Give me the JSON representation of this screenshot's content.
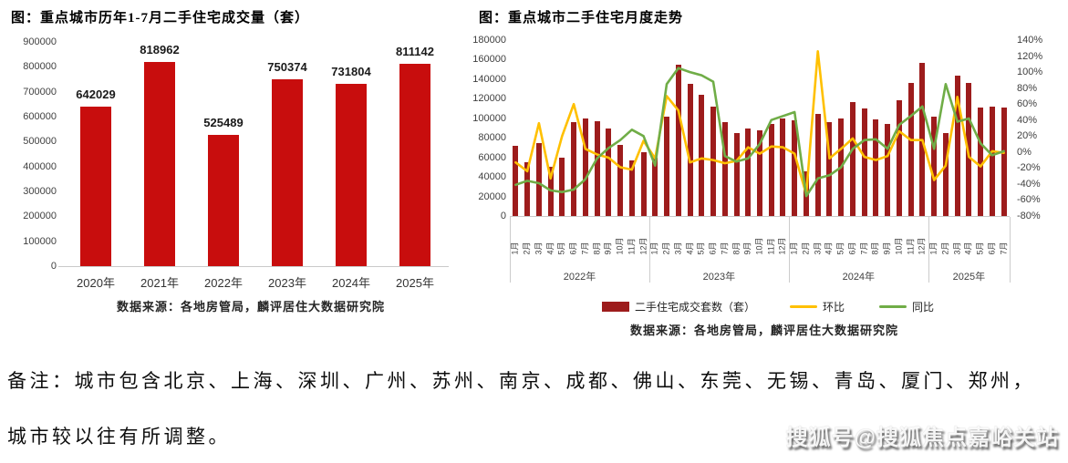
{
  "chart_data": [
    {
      "type": "bar",
      "title": "图：重点城市历年1-7月二手住宅成交量（套）",
      "source": "数据来源：各地房管局，麟评居住大数据研究院",
      "bar_color": "#c80d0d",
      "categories": [
        "2020年",
        "2021年",
        "2022年",
        "2023年",
        "2024年",
        "2025年"
      ],
      "values": [
        642029,
        818962,
        525489,
        750374,
        731804,
        811142
      ],
      "value_labels": [
        "642029",
        "818962",
        "525489",
        "750374",
        "731804",
        "811142"
      ],
      "ylim": [
        0,
        900000
      ],
      "y_ticks": [
        "900000",
        "800000",
        "700000",
        "600000",
        "500000",
        "400000",
        "300000",
        "200000",
        "100000",
        "0"
      ],
      "grid": false
    },
    {
      "type": "combo-bar-line",
      "title": "图：重点城市二手住宅月度走势",
      "source": "数据来源：各地房管局，麟评居住大数据研究院",
      "left_axis": {
        "min": 0,
        "max": 180000,
        "ticks": [
          "180000",
          "160000",
          "140000",
          "120000",
          "100000",
          "80000",
          "60000",
          "40000",
          "20000",
          "0"
        ]
      },
      "right_axis": {
        "min": -80,
        "max": 140,
        "ticks": [
          "140%",
          "120%",
          "100%",
          "80%",
          "60%",
          "40%",
          "20%",
          "0%",
          "-20%",
          "-40%",
          "-60%",
          "-80%"
        ]
      },
      "year_groups": [
        {
          "label": "2022年",
          "count": 12
        },
        {
          "label": "2023年",
          "count": 12
        },
        {
          "label": "2024年",
          "count": 12
        },
        {
          "label": "2025年",
          "count": 7
        }
      ],
      "months": [
        "1月",
        "2月",
        "3月",
        "4月",
        "5月",
        "6月",
        "7月",
        "8月",
        "9月",
        "10月",
        "11月",
        "12月",
        "1月",
        "2月",
        "3月",
        "4月",
        "5月",
        "6月",
        "7月",
        "8月",
        "9月",
        "10月",
        "11月",
        "12月",
        "1月",
        "2月",
        "3月",
        "4月",
        "5月",
        "6月",
        "7月",
        "8月",
        "9月",
        "10月",
        "11月",
        "12月",
        "1月",
        "2月",
        "3月",
        "4月",
        "5月",
        "6月",
        "7月"
      ],
      "series": [
        {
          "name": "二手住宅成交套数（套）",
          "type": "bar",
          "color": "#9d1c1c",
          "axis": "left",
          "values": [
            72000,
            55000,
            75000,
            50000,
            60000,
            96000,
            100000,
            97000,
            90000,
            73000,
            57000,
            65000,
            60000,
            102000,
            155000,
            135000,
            124000,
            112000,
            96000,
            85000,
            90000,
            88000,
            94000,
            100000,
            98000,
            46000,
            104000,
            96000,
            100000,
            117000,
            110000,
            99000,
            94000,
            118000,
            136000,
            157000,
            102000,
            85000,
            144000,
            136000,
            111000,
            112000,
            111000
          ]
        },
        {
          "name": "环比",
          "type": "line",
          "color": "#ffc000",
          "axis": "right",
          "values": [
            -13,
            -24,
            36,
            -33,
            20,
            60,
            4,
            -3,
            -7,
            -19,
            -22,
            14,
            -8,
            70,
            52,
            -13,
            -8,
            -10,
            -14,
            -11,
            6,
            -2,
            7,
            6,
            -2,
            -53,
            126,
            -8,
            4,
            17,
            -6,
            -10,
            -5,
            26,
            15,
            15,
            -35,
            -17,
            69,
            -6,
            -18,
            1,
            -1
          ]
        },
        {
          "name": "同比",
          "type": "line",
          "color": "#70ad47",
          "axis": "right",
          "values": [
            -41,
            -36,
            -39,
            -48,
            -50,
            -47,
            -34,
            -8,
            5,
            15,
            28,
            20,
            -17,
            85,
            105,
            100,
            96,
            88,
            -5,
            -12,
            -8,
            10,
            40,
            45,
            50,
            -55,
            -33,
            -29,
            -19,
            4,
            15,
            16,
            4,
            34,
            45,
            57,
            4,
            85,
            38,
            42,
            11,
            -4,
            1
          ]
        }
      ],
      "grid": false,
      "legend_position": "bottom"
    }
  ],
  "note": {
    "line1": "备注：城市包含北京、上海、深圳、广州、苏州、南京、成都、佛山、东莞、无锡、青岛、厦门、郑州，",
    "line2": "城市较以往有所调整。"
  },
  "watermark": {
    "text": "搜狐号@搜狐焦点嘉峪关站"
  }
}
